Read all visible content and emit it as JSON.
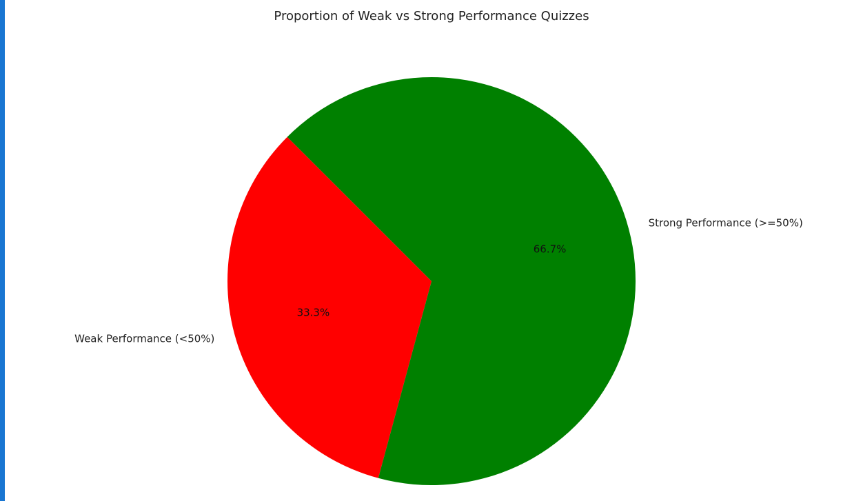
{
  "chart_data": {
    "type": "pie",
    "title": "Proportion of Weak vs Strong Performance Quizzes",
    "slices": [
      {
        "label": "Weak Performance (<50%)",
        "value": 33.3,
        "pct_label": "33.3%",
        "color": "#ff0000"
      },
      {
        "label": "Strong Performance (>=50%)",
        "value": 66.7,
        "pct_label": "66.7%",
        "color": "#008000"
      }
    ],
    "start_angle_deg": 135,
    "direction": "counterclockwise",
    "legend": "none"
  },
  "colors": {
    "left_accent": "#1976d2"
  }
}
